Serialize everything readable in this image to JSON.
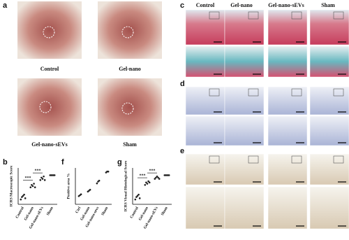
{
  "figure": {
    "panel_labels": [
      "a",
      "b",
      "c",
      "d",
      "e",
      "f",
      "g"
    ],
    "photo_labels": [
      "Control",
      "Gel-nano",
      "Gel-nano-sEVs",
      "Sham"
    ],
    "histology_headers": [
      "Control",
      "Gel-nano",
      "Gel-nano-sEVs",
      "Sham"
    ]
  },
  "chart_data": [
    {
      "type": "scatter",
      "ylabel": "ICRS Macroscopic Score",
      "categories": [
        "Control",
        "Gel-nano",
        "Gel-nano-sEVs",
        "Sham"
      ],
      "values": [
        [
          2,
          3,
          3.5,
          4,
          2.5
        ],
        [
          7,
          8,
          7.5,
          8.5,
          7
        ],
        [
          10,
          11,
          10.5,
          11.5,
          10
        ],
        [
          12,
          12,
          12,
          12,
          12
        ]
      ],
      "ylim": [
        0,
        15
      ],
      "annotations": [
        "***",
        "***"
      ],
      "color": "#222"
    },
    {
      "type": "scatter",
      "ylabel": "Positive area %",
      "categories": [
        "Ctrl",
        "Gel-nano",
        "Gel-nano-sevs",
        "Sham"
      ],
      "values": [
        [
          0.9,
          1.0,
          1.1
        ],
        [
          1.4,
          1.5,
          1.6
        ],
        [
          2.3,
          2.5,
          2.6
        ],
        [
          3.5,
          3.6,
          3.6
        ]
      ],
      "ylim": [
        0,
        4
      ],
      "color": "#222"
    },
    {
      "type": "scatter",
      "ylabel": "ICRS Visual Histological Score",
      "categories": [
        "Control",
        "Gel-nano",
        "Gel-nano-sEVs",
        "Sham"
      ],
      "values": [
        [
          2,
          3,
          3.5,
          4,
          2.5
        ],
        [
          8,
          9,
          8.5,
          9.5,
          9
        ],
        [
          10.5,
          11,
          11.5,
          11,
          10.5
        ],
        [
          12,
          12,
          12,
          12,
          12
        ]
      ],
      "ylim": [
        0,
        15
      ],
      "annotations": [
        "***",
        "***"
      ],
      "color": "#222"
    }
  ]
}
